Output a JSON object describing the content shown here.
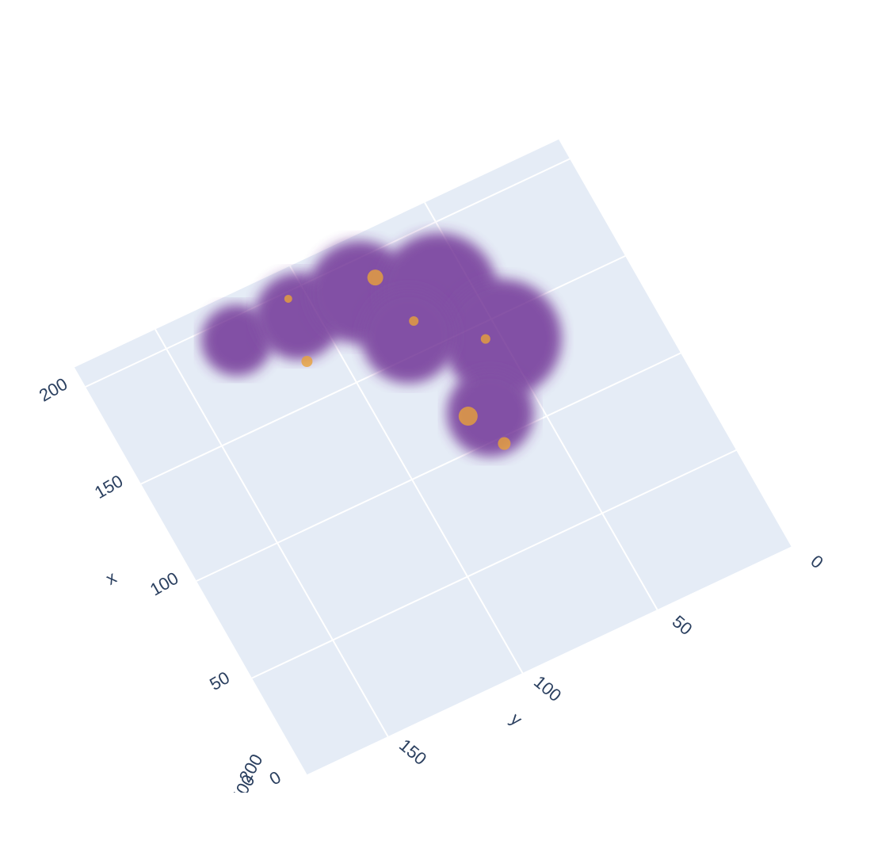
{
  "chart_data": {
    "type": "scatter3d",
    "xlabel": "x",
    "ylabel": "y",
    "xlim": [
      0,
      210
    ],
    "xticks": [
      0,
      50,
      100,
      150,
      200
    ],
    "ylim": [
      0,
      180
    ],
    "yticks": [
      0,
      50,
      100,
      150
    ],
    "zticks": [
      200,
      400
    ],
    "grid": true,
    "opacity": 0.8,
    "series": [
      {
        "color": "#6a2c91",
        "x": [
          190,
          188,
          186,
          171,
          140,
          112,
          159
        ],
        "y": [
          128,
          106,
          84,
          61,
          50,
          66,
          77
        ],
        "size": [
          45,
          55,
          65,
          75,
          75,
          55,
          60
        ]
      },
      {
        "color": "#e8a13a",
        "x": [
          189,
          115,
          97,
          164,
          143,
          168,
          197
        ],
        "y": [
          77,
          73,
          67,
          73,
          55,
          111,
          106
        ],
        "size": [
          10,
          12,
          8,
          6,
          6,
          7,
          5
        ]
      }
    ]
  }
}
